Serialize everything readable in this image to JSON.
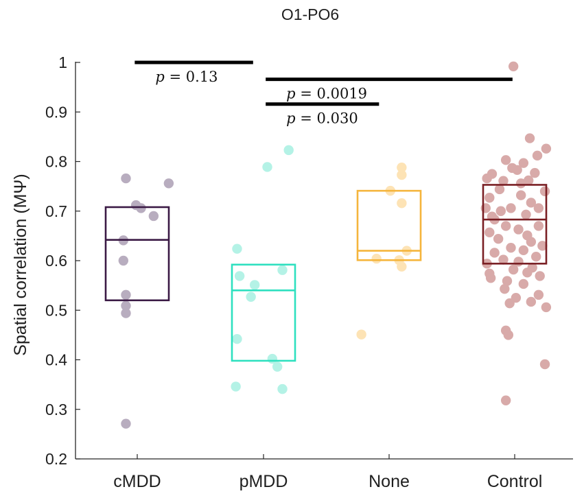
{
  "chart_data": {
    "type": "scatter",
    "title": "O1-PO6",
    "xlabel": "",
    "ylabel": "Spatial correlation (MΨ)",
    "ylim": [
      0.2,
      1.0
    ],
    "yticks": [
      0.2,
      0.3,
      0.4,
      0.5,
      0.6,
      0.7,
      0.8,
      0.9,
      1.0
    ],
    "ytick_labels": [
      "0.2",
      "0.3",
      "0.4",
      "0.5",
      "0.6",
      "0.7",
      "0.8",
      "0.9",
      "1"
    ],
    "categories": [
      "cMDD",
      "pMDD",
      "None",
      "Control"
    ],
    "grid": false,
    "groups": [
      {
        "name": "cMDD",
        "box_color": "#3b1a45",
        "point_color": "#b8adbf",
        "box": {
          "q1": 0.52,
          "median": 0.642,
          "q3": 0.708
        },
        "points": [
          {
            "x": -0.09,
            "y": 0.766
          },
          {
            "x": 0.25,
            "y": 0.756
          },
          {
            "x": -0.01,
            "y": 0.712
          },
          {
            "x": 0.03,
            "y": 0.706
          },
          {
            "x": 0.13,
            "y": 0.69
          },
          {
            "x": -0.11,
            "y": 0.6
          },
          {
            "x": -0.09,
            "y": 0.531
          },
          {
            "x": -0.09,
            "y": 0.509
          },
          {
            "x": -0.09,
            "y": 0.494
          },
          {
            "x": -0.09,
            "y": 0.271
          },
          {
            "x": -0.11,
            "y": 0.641
          }
        ]
      },
      {
        "name": "pMDD",
        "box_color": "#2ee0bf",
        "point_color": "#b4f2e6",
        "box": {
          "q1": 0.398,
          "median": 0.54,
          "q3": 0.592
        },
        "points": [
          {
            "x": 0.2,
            "y": 0.823
          },
          {
            "x": 0.03,
            "y": 0.789
          },
          {
            "x": -0.21,
            "y": 0.624
          },
          {
            "x": 0.15,
            "y": 0.581
          },
          {
            "x": -0.19,
            "y": 0.569
          },
          {
            "x": -0.07,
            "y": 0.551
          },
          {
            "x": -0.1,
            "y": 0.527
          },
          {
            "x": -0.21,
            "y": 0.442
          },
          {
            "x": 0.07,
            "y": 0.402
          },
          {
            "x": 0.11,
            "y": 0.386
          },
          {
            "x": -0.22,
            "y": 0.346
          },
          {
            "x": 0.15,
            "y": 0.341
          }
        ]
      },
      {
        "name": "None",
        "box_color": "#f5b53c",
        "point_color": "#fde3b5",
        "box": {
          "q1": 0.601,
          "median": 0.62,
          "q3": 0.741
        },
        "points": [
          {
            "x": 0.1,
            "y": 0.788
          },
          {
            "x": 0.1,
            "y": 0.773
          },
          {
            "x": 0.01,
            "y": 0.741
          },
          {
            "x": 0.1,
            "y": 0.716
          },
          {
            "x": 0.14,
            "y": 0.62
          },
          {
            "x": 0.08,
            "y": 0.601
          },
          {
            "x": 0.1,
            "y": 0.588
          },
          {
            "x": -0.22,
            "y": 0.451
          },
          {
            "x": -0.1,
            "y": 0.604
          }
        ]
      },
      {
        "name": "Control",
        "box_color": "#7a1f24",
        "point_color": "#d8aaa9",
        "box": {
          "q1": 0.594,
          "median": 0.683,
          "q3": 0.753
        },
        "points": [
          {
            "x": -0.01,
            "y": 0.992
          },
          {
            "x": 0.12,
            "y": 0.847
          },
          {
            "x": 0.25,
            "y": 0.826
          },
          {
            "x": 0.18,
            "y": 0.812
          },
          {
            "x": -0.07,
            "y": 0.803
          },
          {
            "x": 0.07,
            "y": 0.797
          },
          {
            "x": -0.02,
            "y": 0.787
          },
          {
            "x": 0.02,
            "y": 0.783
          },
          {
            "x": -0.18,
            "y": 0.775
          },
          {
            "x": 0.16,
            "y": 0.777
          },
          {
            "x": -0.22,
            "y": 0.766
          },
          {
            "x": -0.09,
            "y": 0.761
          },
          {
            "x": 0.05,
            "y": 0.756
          },
          {
            "x": 0.11,
            "y": 0.762
          },
          {
            "x": 0.24,
            "y": 0.74
          },
          {
            "x": -0.12,
            "y": 0.744
          },
          {
            "x": -0.2,
            "y": 0.727
          },
          {
            "x": 0.13,
            "y": 0.717
          },
          {
            "x": 0.19,
            "y": 0.706
          },
          {
            "x": -0.03,
            "y": 0.706
          },
          {
            "x": -0.23,
            "y": 0.706
          },
          {
            "x": 0.09,
            "y": 0.693
          },
          {
            "x": -0.16,
            "y": 0.683
          },
          {
            "x": 0.19,
            "y": 0.67
          },
          {
            "x": -0.07,
            "y": 0.67
          },
          {
            "x": 0.03,
            "y": 0.663
          },
          {
            "x": -0.2,
            "y": 0.657
          },
          {
            "x": 0.1,
            "y": 0.651
          },
          {
            "x": -0.13,
            "y": 0.644
          },
          {
            "x": 0.13,
            "y": 0.638
          },
          {
            "x": 0.22,
            "y": 0.63
          },
          {
            "x": -0.03,
            "y": 0.626
          },
          {
            "x": 0.07,
            "y": 0.621
          },
          {
            "x": -0.16,
            "y": 0.616
          },
          {
            "x": 0.17,
            "y": 0.608
          },
          {
            "x": -0.09,
            "y": 0.602
          },
          {
            "x": 0.03,
            "y": 0.598
          },
          {
            "x": -0.22,
            "y": 0.594
          },
          {
            "x": 0.14,
            "y": 0.586
          },
          {
            "x": -0.01,
            "y": 0.582
          },
          {
            "x": 0.1,
            "y": 0.576
          },
          {
            "x": -0.2,
            "y": 0.574
          },
          {
            "x": 0.2,
            "y": 0.569
          },
          {
            "x": -0.19,
            "y": 0.565
          },
          {
            "x": -0.06,
            "y": 0.559
          },
          {
            "x": 0.07,
            "y": 0.553
          },
          {
            "x": -0.08,
            "y": 0.543
          },
          {
            "x": 0.19,
            "y": 0.531
          },
          {
            "x": 0.01,
            "y": 0.525
          },
          {
            "x": 0.13,
            "y": 0.517
          },
          {
            "x": 0.25,
            "y": 0.506
          },
          {
            "x": -0.04,
            "y": 0.514
          },
          {
            "x": -0.07,
            "y": 0.459
          },
          {
            "x": -0.05,
            "y": 0.45
          },
          {
            "x": 0.24,
            "y": 0.391
          },
          {
            "x": -0.07,
            "y": 0.318
          },
          {
            "x": -0.18,
            "y": 0.689
          },
          {
            "x": 0.05,
            "y": 0.732
          },
          {
            "x": -0.11,
            "y": 0.7
          }
        ]
      }
    ],
    "significance": [
      {
        "from": "cMDD",
        "to": "pMDD",
        "x_start": -0.02,
        "x_end": 0.92,
        "y": 1.0,
        "label": "p = 0.13",
        "label_pos": "below"
      },
      {
        "from": "pMDD",
        "to": "Control",
        "x_start": 1.02,
        "x_end": 2.98,
        "y": 0.966,
        "label": "p = 0.0019",
        "label_pos": "below"
      },
      {
        "from": "pMDD",
        "to": "None",
        "x_start": 1.02,
        "x_end": 1.92,
        "y": 0.916,
        "label": "p = 0.030",
        "label_pos": "below"
      }
    ]
  }
}
